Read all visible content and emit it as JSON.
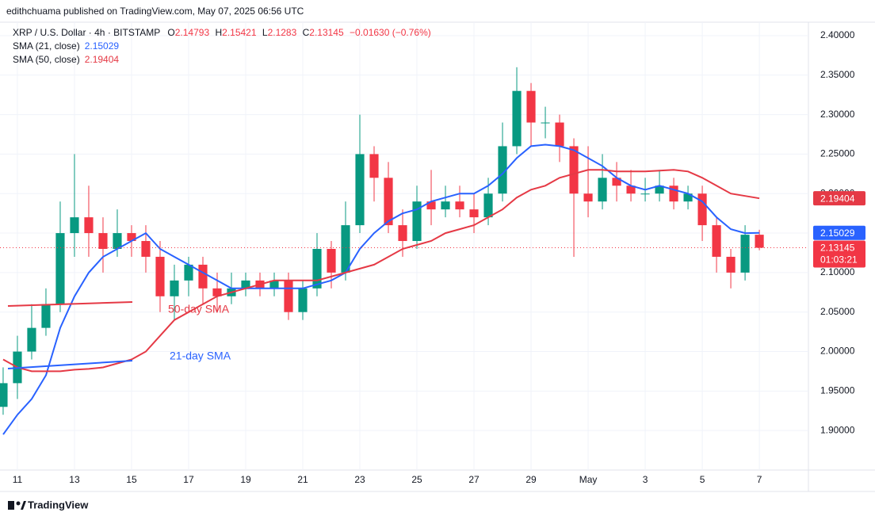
{
  "header": "edithchuama published on TradingView.com, May 07, 2025 06:56 UTC",
  "footer": "TradingView",
  "chart_data": {
    "type": "candlestick",
    "title": "XRP / U.S. Dollar · 4h · BITSTAMP",
    "ohlc_labels": [
      "O",
      "H",
      "L",
      "C"
    ],
    "change": "−0.01630 (−0.76%)",
    "countdown": "01:03:21",
    "up_color": "#089981",
    "down_color": "#f23645",
    "grid": true,
    "x": [
      10.5,
      11,
      11.5,
      12,
      12.5,
      13,
      13.5,
      14,
      14.5,
      15,
      15.5,
      16,
      16.5,
      17,
      17.5,
      18,
      18.5,
      19,
      19.5,
      20,
      20.5,
      21,
      21.5,
      22,
      22.5,
      23,
      23.5,
      24,
      24.5,
      25,
      25.5,
      26,
      26.5,
      27,
      27.5,
      28,
      28.5,
      29,
      29.5,
      30,
      30.5,
      31,
      31.5,
      32,
      32.5,
      33,
      33.5,
      34,
      34.5,
      35,
      35.5,
      36,
      36.5,
      37
    ],
    "open": [
      1.93,
      1.96,
      2.0,
      2.03,
      2.06,
      2.15,
      2.17,
      2.15,
      2.13,
      2.15,
      2.14,
      2.12,
      2.07,
      2.09,
      2.11,
      2.08,
      2.07,
      2.08,
      2.09,
      2.08,
      2.09,
      2.05,
      2.08,
      2.13,
      2.1,
      2.16,
      2.25,
      2.22,
      2.16,
      2.14,
      2.19,
      2.18,
      2.19,
      2.18,
      2.17,
      2.2,
      2.26,
      2.33,
      2.29,
      2.29,
      2.26,
      2.2,
      2.19,
      2.22,
      2.21,
      2.2,
      2.2,
      2.21,
      2.19,
      2.2,
      2.16,
      2.12,
      2.1,
      2.14793
    ],
    "high": [
      1.98,
      2.02,
      2.06,
      2.08,
      2.19,
      2.25,
      2.21,
      2.17,
      2.18,
      2.16,
      2.16,
      2.14,
      2.11,
      2.12,
      2.12,
      2.1,
      2.1,
      2.1,
      2.1,
      2.1,
      2.1,
      2.09,
      2.15,
      2.14,
      2.19,
      2.3,
      2.26,
      2.24,
      2.18,
      2.21,
      2.23,
      2.21,
      2.21,
      2.2,
      2.22,
      2.29,
      2.36,
      2.34,
      2.31,
      2.3,
      2.27,
      2.26,
      2.25,
      2.24,
      2.23,
      2.22,
      2.23,
      2.22,
      2.21,
      2.21,
      2.17,
      2.13,
      2.16,
      2.15421
    ],
    "low": [
      1.92,
      1.94,
      1.99,
      2.02,
      2.05,
      2.12,
      2.12,
      2.1,
      2.12,
      2.12,
      2.1,
      2.05,
      2.04,
      2.07,
      2.06,
      2.05,
      2.06,
      2.07,
      2.07,
      2.07,
      2.04,
      2.04,
      2.07,
      2.08,
      2.09,
      2.15,
      2.19,
      2.15,
      2.12,
      2.13,
      2.16,
      2.17,
      2.17,
      2.15,
      2.16,
      2.19,
      2.25,
      2.26,
      2.27,
      2.24,
      2.12,
      2.17,
      2.18,
      2.19,
      2.19,
      2.19,
      2.19,
      2.18,
      2.18,
      2.14,
      2.1,
      2.08,
      2.09,
      2.1283
    ],
    "close": [
      1.96,
      2.0,
      2.03,
      2.06,
      2.15,
      2.17,
      2.15,
      2.13,
      2.15,
      2.14,
      2.12,
      2.07,
      2.09,
      2.11,
      2.08,
      2.07,
      2.08,
      2.09,
      2.08,
      2.09,
      2.05,
      2.08,
      2.13,
      2.1,
      2.16,
      2.25,
      2.22,
      2.16,
      2.14,
      2.19,
      2.18,
      2.19,
      2.18,
      2.17,
      2.2,
      2.26,
      2.33,
      2.29,
      2.29,
      2.26,
      2.2,
      2.19,
      2.22,
      2.21,
      2.2,
      2.2,
      2.21,
      2.19,
      2.2,
      2.16,
      2.12,
      2.1,
      2.14793,
      2.13145
    ],
    "series": [
      {
        "name": "SMA (21, close)",
        "color": "#2962ff",
        "values": [
          1.895,
          1.92,
          1.94,
          1.97,
          2.03,
          2.07,
          2.1,
          2.12,
          2.13,
          2.14,
          2.15,
          2.13,
          2.12,
          2.11,
          2.1,
          2.09,
          2.08,
          2.08,
          2.08,
          2.08,
          2.08,
          2.08,
          2.085,
          2.09,
          2.1,
          2.13,
          2.15,
          2.165,
          2.175,
          2.18,
          2.19,
          2.195,
          2.2,
          2.2,
          2.21,
          2.225,
          2.245,
          2.26,
          2.262,
          2.26,
          2.255,
          2.245,
          2.235,
          2.22,
          2.21,
          2.205,
          2.21,
          2.205,
          2.2,
          2.19,
          2.17,
          2.155,
          2.15,
          2.15029
        ]
      },
      {
        "name": "SMA (50, close)",
        "color": "#e53945",
        "values": [
          1.99,
          1.98,
          1.975,
          1.975,
          1.975,
          1.977,
          1.978,
          1.98,
          1.985,
          1.99,
          2.0,
          2.02,
          2.04,
          2.05,
          2.06,
          2.07,
          2.075,
          2.08,
          2.085,
          2.09,
          2.09,
          2.09,
          2.09,
          2.095,
          2.1,
          2.105,
          2.11,
          2.12,
          2.13,
          2.135,
          2.14,
          2.15,
          2.155,
          2.16,
          2.17,
          2.18,
          2.195,
          2.205,
          2.21,
          2.22,
          2.225,
          2.23,
          2.23,
          2.228,
          2.228,
          2.228,
          2.229,
          2.23,
          2.228,
          2.22,
          2.21,
          2.2,
          2.197,
          2.19404
        ]
      }
    ],
    "annotations": [
      "50-day SMA",
      "21-day SMA"
    ],
    "xlim": [
      10.39,
      38.72
    ],
    "xticks": [
      11,
      13,
      15,
      17,
      19,
      21,
      23,
      25,
      27,
      29,
      {
        "value": 31,
        "label": "May"
      },
      {
        "value": 33,
        "label": "3"
      },
      {
        "value": 35,
        "label": "5"
      },
      {
        "value": 37,
        "label": "7"
      }
    ],
    "ylim": [
      1.853,
      2.415
    ],
    "yticks": [
      {
        "value": 1.9,
        "label": "1.90000"
      },
      {
        "value": 1.95,
        "label": "1.95000"
      },
      {
        "value": 2.0,
        "label": "2.00000"
      },
      {
        "value": 2.05,
        "label": "2.05000"
      },
      {
        "value": 2.1,
        "label": "2.10000"
      },
      {
        "value": 2.15,
        "label": "2.15000"
      },
      {
        "value": 2.2,
        "label": "2.20000"
      },
      {
        "value": 2.25,
        "label": "2.25000"
      },
      {
        "value": 2.3,
        "label": "2.30000"
      },
      {
        "value": 2.35,
        "label": "2.35000"
      },
      {
        "value": 2.4,
        "label": "2.40000"
      }
    ]
  }
}
